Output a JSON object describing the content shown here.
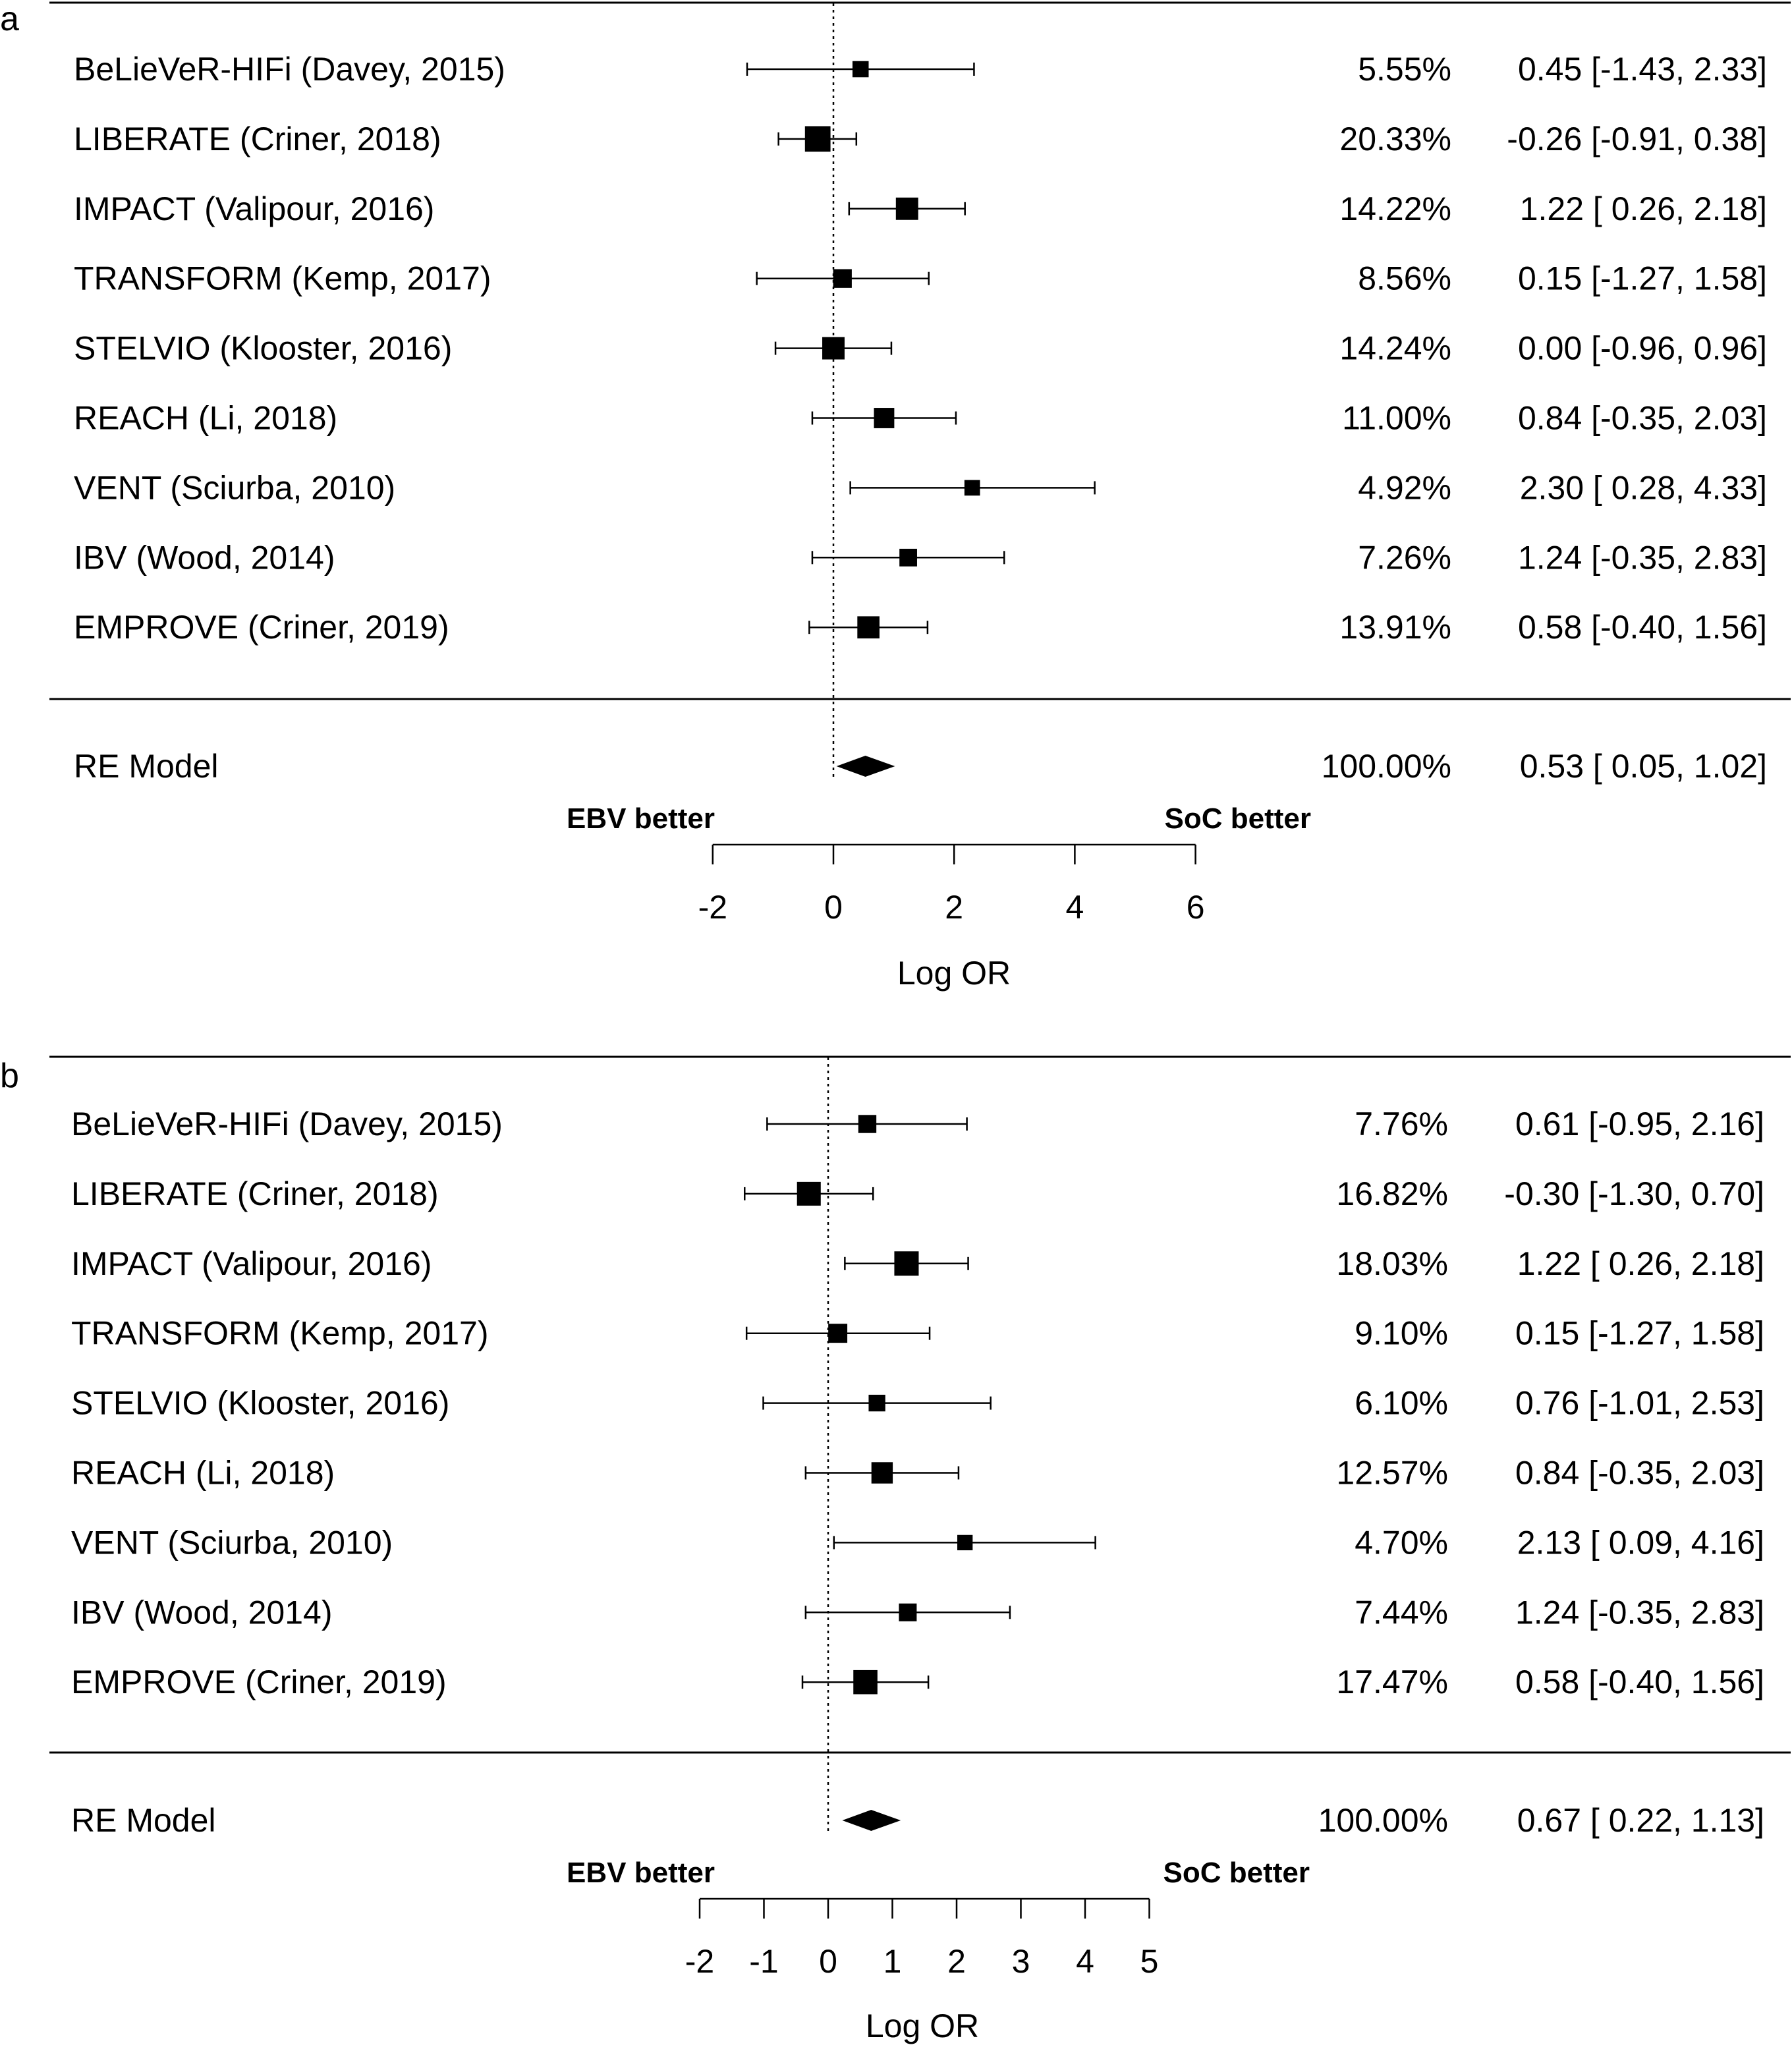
{
  "chart_data": [
    {
      "type": "forest",
      "panel": "a",
      "xlabel": "Log OR",
      "left_label": "EBV better",
      "right_label": "SoC better",
      "xticks": [
        -2,
        0,
        2,
        4,
        6
      ],
      "xlim": [
        -2,
        6
      ],
      "studies": [
        {
          "name": "BeLieVeR-HIFi (Davey, 2015)",
          "weight": "5.55%",
          "est": 0.45,
          "lo": -1.43,
          "hi": 2.33,
          "ci_text": "0.45 [-1.43, 2.33]"
        },
        {
          "name": "LIBERATE (Criner, 2018)",
          "weight": "20.33%",
          "est": -0.26,
          "lo": -0.91,
          "hi": 0.38,
          "ci_text": "-0.26 [-0.91, 0.38]"
        },
        {
          "name": "IMPACT (Valipour, 2016)",
          "weight": "14.22%",
          "est": 1.22,
          "lo": 0.26,
          "hi": 2.18,
          "ci_text": "1.22 [ 0.26, 2.18]"
        },
        {
          "name": "TRANSFORM (Kemp, 2017)",
          "weight": "8.56%",
          "est": 0.15,
          "lo": -1.27,
          "hi": 1.58,
          "ci_text": "0.15 [-1.27, 1.58]"
        },
        {
          "name": "STELVIO (Klooster, 2016)",
          "weight": "14.24%",
          "est": 0.0,
          "lo": -0.96,
          "hi": 0.96,
          "ci_text": "0.00 [-0.96, 0.96]"
        },
        {
          "name": "REACH (Li, 2018)",
          "weight": "11.00%",
          "est": 0.84,
          "lo": -0.35,
          "hi": 2.03,
          "ci_text": "0.84 [-0.35, 2.03]"
        },
        {
          "name": "VENT (Sciurba, 2010)",
          "weight": "4.92%",
          "est": 2.3,
          "lo": 0.28,
          "hi": 4.33,
          "ci_text": "2.30 [ 0.28, 4.33]"
        },
        {
          "name": "IBV (Wood, 2014)",
          "weight": "7.26%",
          "est": 1.24,
          "lo": -0.35,
          "hi": 2.83,
          "ci_text": "1.24 [-0.35, 2.83]"
        },
        {
          "name": "EMPROVE (Criner, 2019)",
          "weight": "13.91%",
          "est": 0.58,
          "lo": -0.4,
          "hi": 1.56,
          "ci_text": "0.58 [-0.40, 1.56]"
        }
      ],
      "summary": {
        "name": "RE Model",
        "weight": "100.00%",
        "est": 0.53,
        "lo": 0.05,
        "hi": 1.02,
        "ci_text": "0.53 [ 0.05, 1.02]"
      }
    },
    {
      "type": "forest",
      "panel": "b",
      "xlabel": "Log OR",
      "left_label": "EBV better",
      "right_label": "SoC better",
      "xticks": [
        -2,
        -1,
        0,
        1,
        2,
        3,
        4,
        5
      ],
      "xlim": [
        -2,
        5
      ],
      "studies": [
        {
          "name": "BeLieVeR-HIFi (Davey, 2015)",
          "weight": "7.76%",
          "est": 0.61,
          "lo": -0.95,
          "hi": 2.16,
          "ci_text": "0.61 [-0.95, 2.16]"
        },
        {
          "name": "LIBERATE (Criner, 2018)",
          "weight": "16.82%",
          "est": -0.3,
          "lo": -1.3,
          "hi": 0.7,
          "ci_text": "-0.30 [-1.30, 0.70]"
        },
        {
          "name": "IMPACT (Valipour, 2016)",
          "weight": "18.03%",
          "est": 1.22,
          "lo": 0.26,
          "hi": 2.18,
          "ci_text": "1.22 [ 0.26, 2.18]"
        },
        {
          "name": "TRANSFORM (Kemp, 2017)",
          "weight": "9.10%",
          "est": 0.15,
          "lo": -1.27,
          "hi": 1.58,
          "ci_text": "0.15 [-1.27, 1.58]"
        },
        {
          "name": "STELVIO (Klooster, 2016)",
          "weight": "6.10%",
          "est": 0.76,
          "lo": -1.01,
          "hi": 2.53,
          "ci_text": "0.76 [-1.01, 2.53]"
        },
        {
          "name": "REACH (Li, 2018)",
          "weight": "12.57%",
          "est": 0.84,
          "lo": -0.35,
          "hi": 2.03,
          "ci_text": "0.84 [-0.35, 2.03]"
        },
        {
          "name": "VENT (Sciurba, 2010)",
          "weight": "4.70%",
          "est": 2.13,
          "lo": 0.09,
          "hi": 4.16,
          "ci_text": "2.13 [ 0.09, 4.16]"
        },
        {
          "name": "IBV (Wood, 2014)",
          "weight": "7.44%",
          "est": 1.24,
          "lo": -0.35,
          "hi": 2.83,
          "ci_text": "1.24 [-0.35, 2.83]"
        },
        {
          "name": "EMPROVE (Criner, 2019)",
          "weight": "17.47%",
          "est": 0.58,
          "lo": -0.4,
          "hi": 1.56,
          "ci_text": "0.58 [-0.40, 1.56]"
        }
      ],
      "summary": {
        "name": "RE Model",
        "weight": "100.00%",
        "est": 0.67,
        "lo": 0.22,
        "hi": 1.13,
        "ci_text": "0.67 [ 0.22, 1.13]"
      }
    }
  ]
}
